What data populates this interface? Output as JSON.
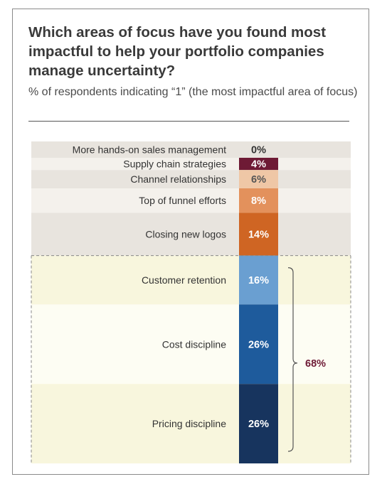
{
  "header": {
    "title": "Which areas of focus have you found most impactful to help your portfolio companies manage uncertainty?",
    "subtitle": "% of respondents indicating “1” (the most impactful area of focus)"
  },
  "chart_data": {
    "type": "bar",
    "orientation": "stacked-column",
    "categories": [
      "More hands-on sales management",
      "Supply chain strategies",
      "Channel relationships",
      "Top of funnel efforts",
      "Closing new logos",
      "Customer retention",
      "Cost discipline",
      "Pricing discipline"
    ],
    "values": [
      0,
      4,
      6,
      8,
      14,
      16,
      26,
      26
    ],
    "value_labels": [
      "0%",
      "4%",
      "6%",
      "8%",
      "14%",
      "16%",
      "26%",
      "26%"
    ],
    "colors": [
      "#ffffff",
      "#6e1a35",
      "#efc7a6",
      "#e3915c",
      "#cf6523",
      "#6a9fd1",
      "#1e5b9c",
      "#17345e"
    ],
    "label_colors": [
      "#333333",
      "#ffffff",
      "#555555",
      "#ffffff",
      "#ffffff",
      "#ffffff",
      "#ffffff",
      "#ffffff"
    ],
    "row_backgrounds": [
      "#e8e4de",
      "#f4f1ec",
      "#e8e4de",
      "#f4f1ec",
      "#e8e4de",
      "#f8f6dd",
      "#fdfdf3",
      "#f8f6dd"
    ],
    "highlight_group": {
      "start_index": 5,
      "end_index": 7,
      "total_label": "68%",
      "total_color": "#6e1a35",
      "border_color": "#888888",
      "bracket_color": "#555555"
    },
    "legend": "none",
    "grid": false
  }
}
